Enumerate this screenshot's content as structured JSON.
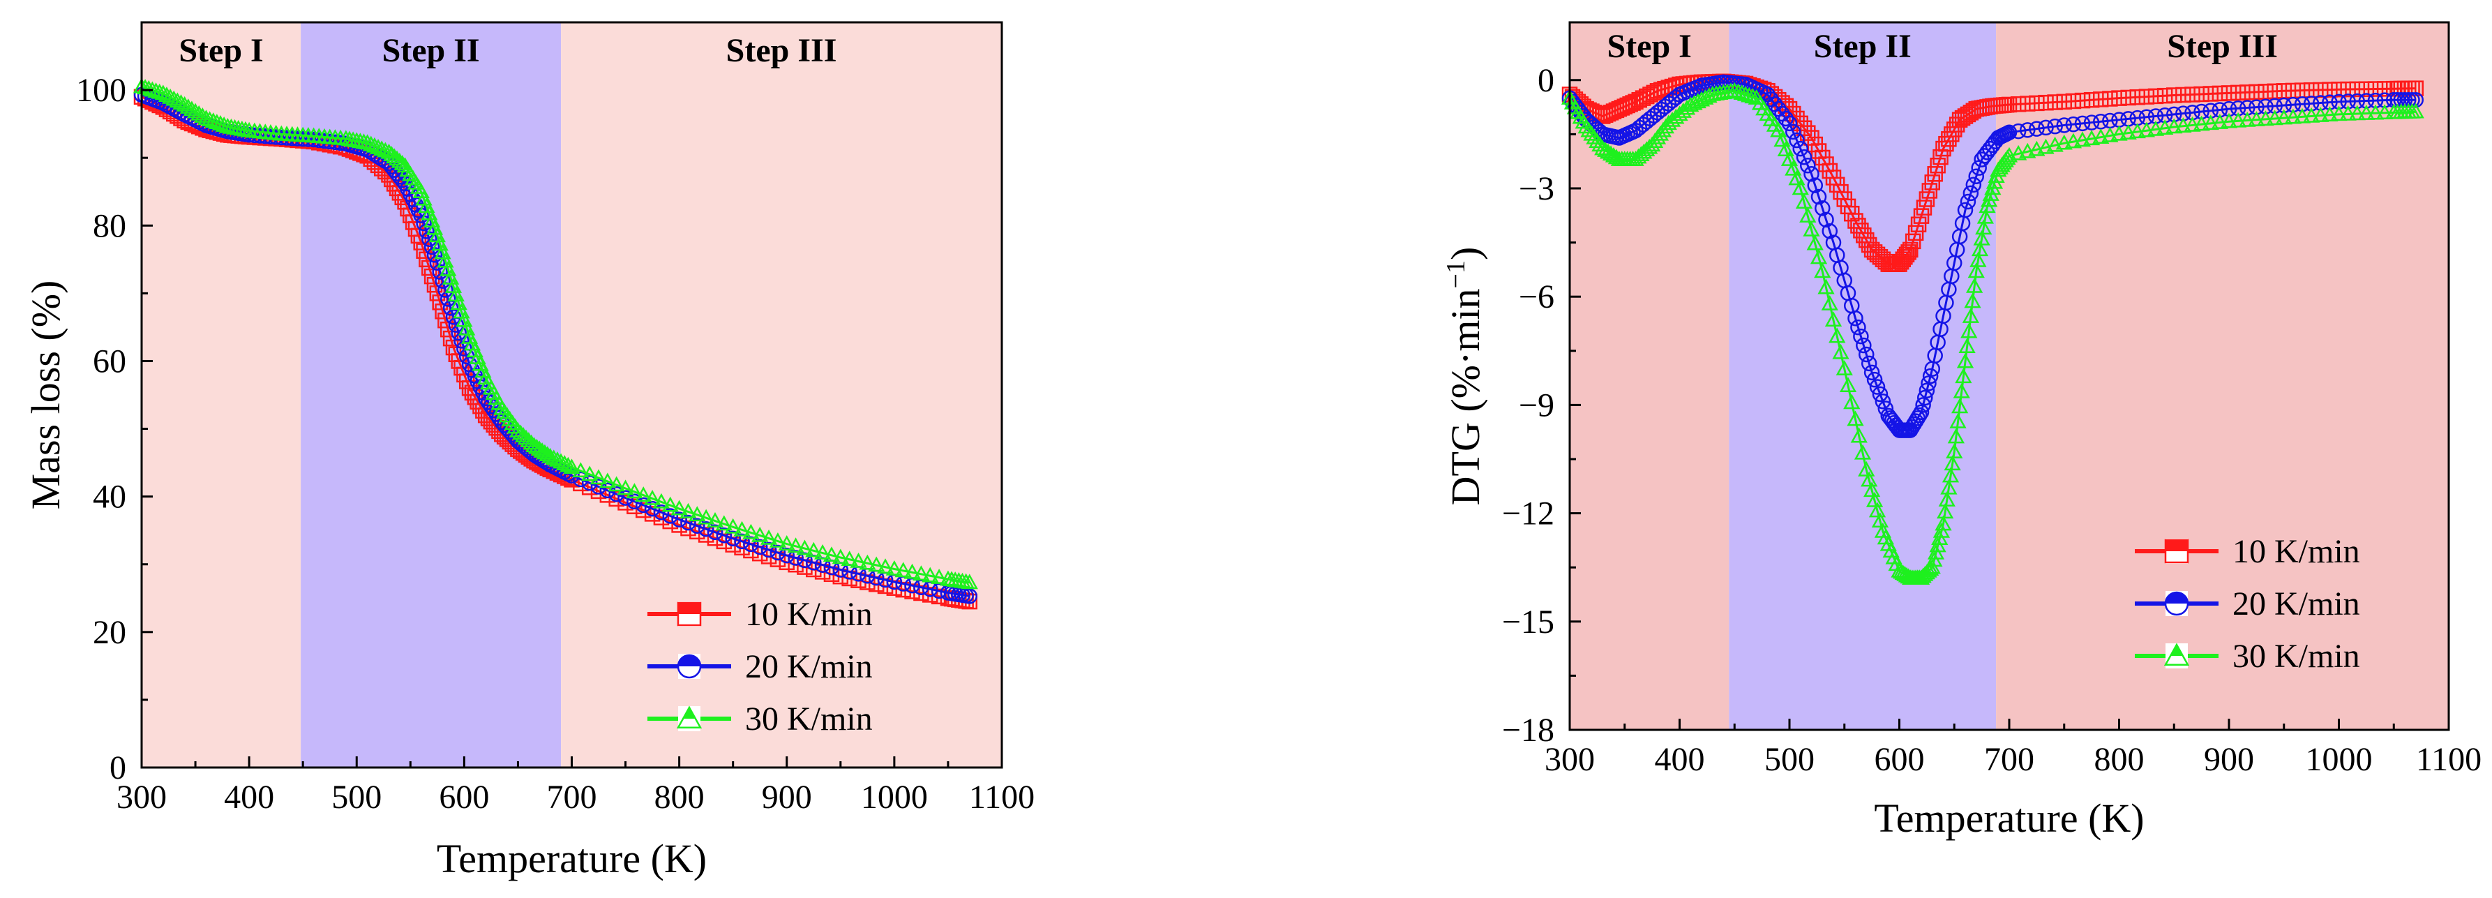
{
  "chart_data": [
    {
      "type": "scatter",
      "panel": "left",
      "xlabel": "Temperature (K)",
      "ylabel": "Mass loss (%)",
      "xlim": [
        300,
        1100
      ],
      "ylim": [
        0,
        110
      ],
      "xticks": [
        300,
        400,
        500,
        600,
        700,
        800,
        900,
        1000,
        1100
      ],
      "yticks": [
        0,
        20,
        40,
        60,
        80,
        100
      ],
      "xtick_labels": [
        "300",
        "400",
        "500",
        "600",
        "700",
        "800",
        "900",
        "1000",
        "1100"
      ],
      "ytick_labels": [
        "0",
        "20",
        "40",
        "60",
        "80",
        "100"
      ],
      "regions": [
        {
          "label": "Step I",
          "x0": 300,
          "x1": 448,
          "color": "#fbdcd9"
        },
        {
          "label": "Step II",
          "x0": 448,
          "x1": 690,
          "color": "#c6b8fb"
        },
        {
          "label": "Step III",
          "x0": 690,
          "x1": 1100,
          "color": "#fbdcd9"
        }
      ],
      "legend_position": "bottom-right",
      "series": [
        {
          "name": "10 K/min",
          "color": "#ff1a1a",
          "marker": "square",
          "x": [
            300,
            320,
            340,
            360,
            380,
            400,
            430,
            460,
            490,
            510,
            530,
            545,
            560,
            575,
            590,
            605,
            620,
            635,
            650,
            665,
            680,
            700,
            750,
            800,
            850,
            900,
            950,
            1000,
            1050,
            1070
          ],
          "y": [
            99,
            97.5,
            95.5,
            94.2,
            93.4,
            93.1,
            92.8,
            92.4,
            91.5,
            90.3,
            87.5,
            83.5,
            77.5,
            70,
            62,
            56,
            52,
            49.2,
            47,
            45.3,
            44,
            42.5,
            39.1,
            35.8,
            32.9,
            30.3,
            28.2,
            26.5,
            25,
            24.5
          ]
        },
        {
          "name": "20 K/min",
          "color": "#1414e6",
          "marker": "circle-half",
          "x": [
            300,
            320,
            340,
            360,
            380,
            400,
            430,
            460,
            490,
            510,
            530,
            545,
            560,
            575,
            590,
            605,
            620,
            635,
            650,
            665,
            680,
            700,
            750,
            800,
            850,
            900,
            950,
            1000,
            1050,
            1070
          ],
          "y": [
            99.3,
            98.1,
            96.4,
            94.8,
            93.9,
            93.4,
            93,
            92.7,
            92.1,
            91.2,
            89.2,
            86.2,
            81.5,
            74.5,
            66.5,
            59.5,
            54.5,
            51,
            48.2,
            46.2,
            44.7,
            43.1,
            39.8,
            36.6,
            33.8,
            31.3,
            29.2,
            27.4,
            25.8,
            25.3
          ]
        },
        {
          "name": "30 K/min",
          "color": "#1ef01e",
          "marker": "triangle",
          "x": [
            300,
            320,
            340,
            360,
            380,
            400,
            430,
            460,
            490,
            510,
            530,
            545,
            560,
            575,
            590,
            605,
            620,
            635,
            650,
            665,
            680,
            700,
            750,
            800,
            850,
            900,
            950,
            1000,
            1050,
            1070
          ],
          "y": [
            100.5,
            99.5,
            97.8,
            95.8,
            94.6,
            94,
            93.5,
            93.2,
            92.8,
            92.2,
            90.8,
            88.8,
            85,
            78.5,
            71,
            63.5,
            57.5,
            53,
            49.7,
            47.5,
            45.9,
            44.3,
            41.2,
            38.2,
            35.5,
            33,
            31,
            29.3,
            27.8,
            27.3
          ]
        }
      ]
    },
    {
      "type": "scatter",
      "panel": "right",
      "xlabel": "Temperature (K)",
      "ylabel": "DTG (%·min",
      "ylabel_superscript": "−1",
      "ylabel_close": ")",
      "xlim": [
        300,
        1100
      ],
      "ylim": [
        -18,
        1.6
      ],
      "xticks": [
        300,
        400,
        500,
        600,
        700,
        800,
        900,
        1000,
        1100
      ],
      "yticks": [
        0,
        -3,
        -6,
        -9,
        -12,
        -15,
        -18
      ],
      "xtick_labels": [
        "300",
        "400",
        "500",
        "600",
        "700",
        "800",
        "900",
        "1000",
        "1100"
      ],
      "ytick_labels": [
        "0",
        "−3",
        "−6",
        "−9",
        "−12",
        "−15",
        "−18"
      ],
      "regions": [
        {
          "label": "Step I",
          "x0": 300,
          "x1": 445,
          "color": "#f5c3c3"
        },
        {
          "label": "Step II",
          "x0": 445,
          "x1": 688,
          "color": "#c6b8fb"
        },
        {
          "label": "Step III",
          "x0": 688,
          "x1": 1100,
          "color": "#f5c3c3"
        }
      ],
      "legend_position": "center-right",
      "series": [
        {
          "name": "10 K/min",
          "color": "#ff1a1a",
          "marker": "square",
          "x": [
            300,
            315,
            330,
            345,
            360,
            380,
            400,
            420,
            440,
            460,
            480,
            500,
            520,
            540,
            560,
            575,
            590,
            600,
            610,
            625,
            640,
            655,
            670,
            685,
            700,
            750,
            800,
            850,
            900,
            950,
            1000,
            1050,
            1070
          ],
          "y": [
            -0.4,
            -0.8,
            -1,
            -0.8,
            -0.6,
            -0.3,
            -0.12,
            -0.06,
            -0.04,
            -0.1,
            -0.3,
            -0.8,
            -1.6,
            -2.7,
            -3.9,
            -4.7,
            -5.1,
            -5.1,
            -4.7,
            -3.3,
            -1.9,
            -1.1,
            -0.8,
            -0.72,
            -0.68,
            -0.6,
            -0.5,
            -0.42,
            -0.36,
            -0.3,
            -0.26,
            -0.24,
            -0.23
          ]
        },
        {
          "name": "20 K/min",
          "color": "#1414e6",
          "marker": "circle-half",
          "x": [
            300,
            315,
            330,
            345,
            360,
            380,
            400,
            420,
            440,
            460,
            480,
            500,
            520,
            540,
            560,
            575,
            590,
            600,
            610,
            620,
            630,
            645,
            660,
            675,
            690,
            700,
            750,
            800,
            850,
            900,
            950,
            1000,
            1050,
            1070
          ],
          "y": [
            -0.5,
            -1.1,
            -1.5,
            -1.6,
            -1.4,
            -0.9,
            -0.4,
            -0.15,
            -0.06,
            -0.12,
            -0.4,
            -1.2,
            -2.6,
            -4.5,
            -6.6,
            -8.1,
            -9.3,
            -9.7,
            -9.7,
            -9.2,
            -8,
            -5.8,
            -3.6,
            -2.2,
            -1.6,
            -1.45,
            -1.25,
            -1.1,
            -0.95,
            -0.8,
            -0.7,
            -0.6,
            -0.55,
            -0.55
          ]
        },
        {
          "name": "30 K/min",
          "color": "#1ef01e",
          "marker": "triangle",
          "x": [
            300,
            315,
            330,
            345,
            360,
            375,
            390,
            410,
            430,
            450,
            470,
            490,
            510,
            530,
            550,
            570,
            585,
            600,
            610,
            620,
            630,
            640,
            650,
            660,
            670,
            680,
            690,
            700,
            750,
            800,
            850,
            900,
            950,
            1000,
            1050,
            1070
          ],
          "y": [
            -0.5,
            -1.3,
            -1.9,
            -2.2,
            -2.2,
            -1.8,
            -1.2,
            -0.7,
            -0.4,
            -0.3,
            -0.5,
            -1.4,
            -3,
            -5.3,
            -8,
            -10.8,
            -12.5,
            -13.6,
            -13.8,
            -13.8,
            -13.5,
            -12.3,
            -10.3,
            -7.8,
            -5.3,
            -3.5,
            -2.5,
            -2.1,
            -1.75,
            -1.5,
            -1.3,
            -1.15,
            -1.05,
            -0.95,
            -0.9,
            -0.88
          ]
        }
      ]
    }
  ]
}
